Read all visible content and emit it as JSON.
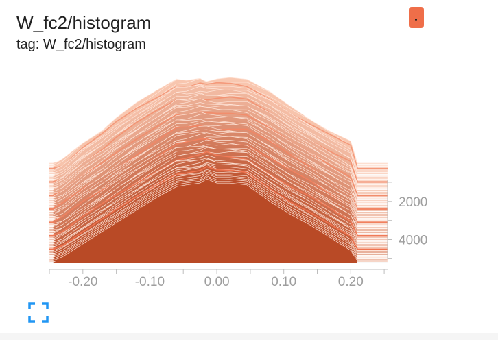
{
  "card": {
    "title": "W_fc2/histogram",
    "tag_line": "tag: W_fc2/histogram"
  },
  "icons": {
    "menu": "more-vert-icon",
    "expand": "fullscreen-icon"
  },
  "colors": {
    "front": "#b94a26",
    "back": "#f9c8b1",
    "stroke": "#ffe6da",
    "accent": "#ef6e49"
  },
  "chart_data": {
    "type": "area",
    "mode": "offset",
    "x_axis": {
      "range": [
        -0.25,
        0.255
      ],
      "ticks": [
        -0.2,
        -0.1,
        0.0,
        0.1,
        0.2
      ],
      "tick_labels": [
        "-0.20",
        "-0.10",
        "0.00",
        "0.10",
        "0.20"
      ]
    },
    "step_axis": {
      "range": [
        0,
        5200
      ],
      "ticks": [
        2000,
        4000
      ],
      "tick_labels": [
        "2000",
        "4000"
      ]
    },
    "num_slices": 60,
    "x": [
      -0.245,
      -0.23,
      -0.2,
      -0.17,
      -0.15,
      -0.12,
      -0.09,
      -0.06,
      -0.045,
      -0.025,
      -0.015,
      0.0,
      0.02,
      0.045,
      0.08,
      0.11,
      0.14,
      0.17,
      0.2,
      0.21
    ],
    "front_profile": [
      0,
      0.05,
      0.2,
      0.35,
      0.45,
      0.6,
      0.75,
      0.88,
      0.9,
      0.92,
      0.97,
      0.92,
      0.92,
      0.9,
      0.7,
      0.55,
      0.42,
      0.27,
      0.12,
      0
    ],
    "back_profile": [
      0,
      0.05,
      0.25,
      0.4,
      0.52,
      0.68,
      0.82,
      0.97,
      0.96,
      1.0,
      0.96,
      0.97,
      0.97,
      0.95,
      0.82,
      0.66,
      0.52,
      0.38,
      0.25,
      0
    ]
  }
}
